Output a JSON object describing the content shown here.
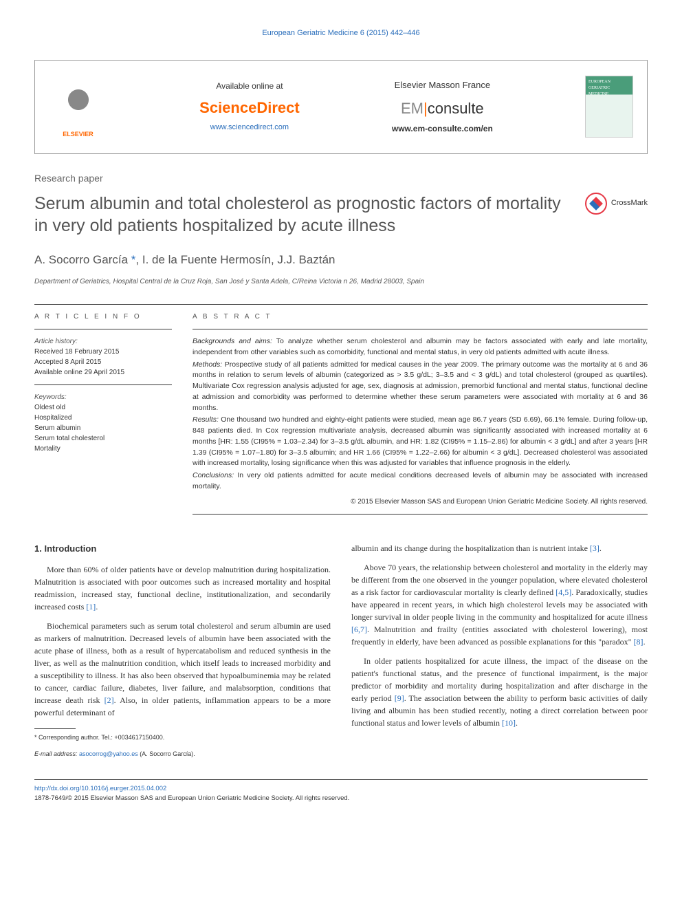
{
  "header": {
    "journal_ref": "European Geriatric Medicine 6 (2015) 442–446",
    "elsevier_label": "ELSEVIER",
    "available_text": "Available online at",
    "sciencedirect": "ScienceDirect",
    "sd_url": "www.sciencedirect.com",
    "em_france": "Elsevier Masson France",
    "em_consulte_grey": "EM",
    "em_consulte_dark": "consulte",
    "em_url": "www.em-consulte.com/en",
    "cover_text": "EUROPEAN GERIATRIC MEDICINE"
  },
  "article": {
    "type": "Research paper",
    "title": "Serum albumin and total cholesterol as prognostic factors of mortality in very old patients hospitalized by acute illness",
    "crossmark": "CrossMark",
    "authors_html": "A. Socorro García *, I. de la Fuente Hermosín, J.J. Baztán",
    "affiliation": "Department of Geriatrics, Hospital Central de la Cruz Roja, San José y Santa Adela, C/Reina Victoria n 26, Madrid 28003, Spain"
  },
  "info": {
    "heading": "A R T I C L E   I N F O",
    "history_label": "Article history:",
    "received": "Received 18 February 2015",
    "accepted": "Accepted 8 April 2015",
    "online": "Available online 29 April 2015",
    "keywords_label": "Keywords:",
    "kw1": "Oldest old",
    "kw2": "Hospitalized",
    "kw3": "Serum albumin",
    "kw4": "Serum total cholesterol",
    "kw5": "Mortality"
  },
  "abstract": {
    "heading": "A B S T R A C T",
    "backgrounds_label": "Backgrounds and aims:",
    "backgrounds": " To analyze whether serum cholesterol and albumin may be factors associated with early and late mortality, independent from other variables such as comorbidity, functional and mental status, in very old patients admitted with acute illness.",
    "methods_label": "Methods:",
    "methods": " Prospective study of all patients admitted for medical causes in the year 2009. The primary outcome was the mortality at 6 and 36 months in relation to serum levels of albumin (categorized as > 3.5 g/dL; 3–3.5 and < 3 g/dL) and total cholesterol (grouped as quartiles). Multivariate Cox regression analysis adjusted for age, sex, diagnosis at admission, premorbid functional and mental status, functional decline at admission and comorbidity was performed to determine whether these serum parameters were associated with mortality at 6 and 36 months.",
    "results_label": "Results:",
    "results": " One thousand two hundred and eighty-eight patients were studied, mean age 86.7 years (SD 6.69), 66.1% female. During follow-up, 848 patients died. In Cox regression multivariate analysis, decreased albumin was significantly associated with increased mortality at 6 months [HR: 1.55 (CI95% = 1.03–2.34) for 3–3.5 g/dL albumin, and HR: 1.82 (CI95% = 1.15–2.86) for albumin < 3 g/dL] and after 3 years [HR 1.39 (CI95% = 1.07–1.80) for 3–3.5 albumin; and HR 1.66 (CI95% = 1.22–2.66) for albumin < 3 g/dL]. Decreased cholesterol was associated with increased mortality, losing significance when this was adjusted for variables that influence prognosis in the elderly.",
    "conclusions_label": "Conclusions:",
    "conclusions": " In very old patients admitted for acute medical conditions decreased levels of albumin may be associated with increased mortality.",
    "copyright": "© 2015 Elsevier Masson SAS and European Union Geriatric Medicine Society. All rights reserved."
  },
  "body": {
    "section_heading": "1. Introduction",
    "p1": "More than 60% of older patients have or develop malnutrition during hospitalization. Malnutrition is associated with poor outcomes such as increased mortality and hospital readmission, increased stay, functional decline, institutionalization, and secondarily increased costs ",
    "p1_ref": "[1]",
    "p1_end": ".",
    "p2a": "Biochemical parameters such as serum total cholesterol and serum albumin are used as markers of malnutrition. Decreased levels of albumin have been associated with the acute phase of illness, both as a result of hypercatabolism and reduced synthesis in the liver, as well as the malnutrition condition, which itself leads to increased morbidity and a susceptibility to illness. It has also been observed that hypoalbuminemia may be related to cancer, cardiac failure, diabetes, liver failure, and malabsorption, conditions that increase death risk ",
    "p2_ref1": "[2]",
    "p2b": ". Also, in older patients, inflammation appears to be a more powerful determinant of",
    "p3a": "albumin and its change during the hospitalization than is nutrient intake ",
    "p3_ref": "[3]",
    "p3b": ".",
    "p4a": "Above 70 years, the relationship between cholesterol and mortality in the elderly may be different from the one observed in the younger population, where elevated cholesterol as a risk factor for cardiovascular mortality is clearly defined ",
    "p4_ref1": "[4,5]",
    "p4b": ". Paradoxically, studies have appeared in recent years, in which high cholesterol levels may be associated with longer survival in older people living in the community and hospitalized for acute illness ",
    "p4_ref2": "[6,7]",
    "p4c": ". Malnutrition and frailty (entities associated with cholesterol lowering), most frequently in elderly, have been advanced as possible explanations for this \"paradox\" ",
    "p4_ref3": "[8]",
    "p4d": ".",
    "p5a": "In older patients hospitalized for acute illness, the impact of the disease on the patient's functional status, and the presence of functional impairment, is the major predictor of morbidity and mortality during hospitalization and after discharge in the early period ",
    "p5_ref1": "[9]",
    "p5b": ". The association between the ability to perform basic activities of daily living and albumin has been studied recently, noting a direct correlation between poor functional status and lower levels of albumin ",
    "p5_ref2": "[10]",
    "p5c": "."
  },
  "footnotes": {
    "corresponding": "* Corresponding author. Tel.: +0034617150400.",
    "email_label": "E-mail address: ",
    "email": "asocorrog@yahoo.es",
    "email_author": " (A. Socorro García)."
  },
  "footer": {
    "doi": "http://dx.doi.org/10.1016/j.eurger.2015.04.002",
    "issn": "1878-7649/© 2015 Elsevier Masson SAS and European Union Geriatric Medicine Society. All rights reserved."
  },
  "colors": {
    "link": "#2a6ebb",
    "orange": "#ff6600",
    "text": "#333333",
    "grey": "#888888"
  }
}
